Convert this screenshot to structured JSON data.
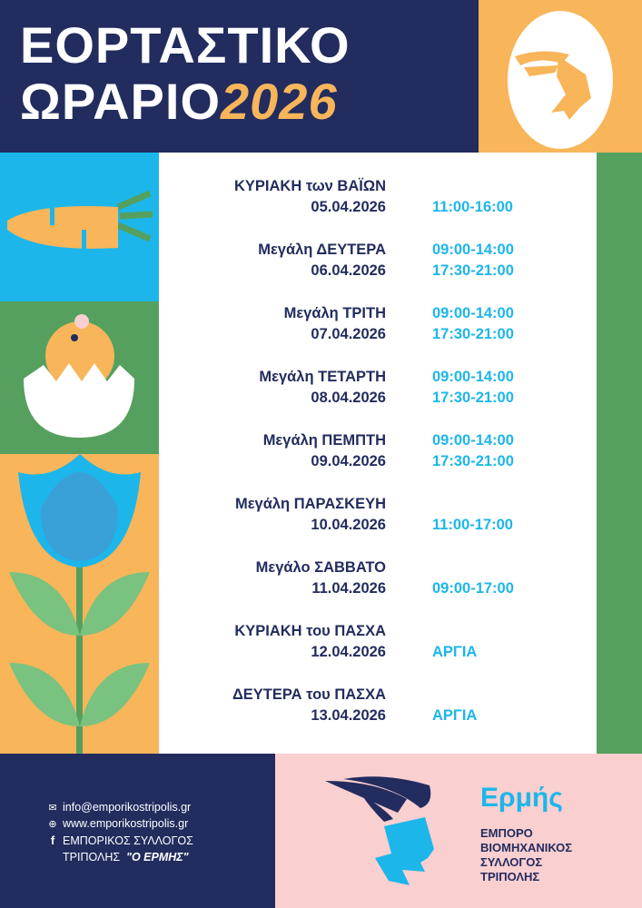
{
  "title": {
    "line1": "ΕΟΡΤΑΣΤΙΚΟ",
    "line2": "ΩΡΑΡΙΟ",
    "year": "2026"
  },
  "colors": {
    "navy": "#222c5e",
    "orange": "#f8b55a",
    "blue": "#1cb6ea",
    "green": "#55a05e",
    "pink": "#f9cfd0"
  },
  "schedule": [
    {
      "day": "ΚΥΡΙΑΚΗ των ΒΑΪΩΝ",
      "date": "05.04.2026",
      "times": [
        "11:00-16:00"
      ]
    },
    {
      "day": "Μεγάλη ΔΕΥΤΕΡΑ",
      "date": "06.04.2026",
      "times": [
        "09:00-14:00",
        "17:30-21:00"
      ]
    },
    {
      "day": "Μεγάλη ΤΡΙΤΗ",
      "date": "07.04.2026",
      "times": [
        "09:00-14:00",
        "17:30-21:00"
      ]
    },
    {
      "day": "Μεγάλη ΤΕΤΑΡΤΗ",
      "date": "08.04.2026",
      "times": [
        "09:00-14:00",
        "17:30-21:00"
      ]
    },
    {
      "day": "Μεγάλη ΠΕΜΠΤΗ",
      "date": "09.04.2026",
      "times": [
        "09:00-14:00",
        "17:30-21:00"
      ]
    },
    {
      "day": "Μεγάλη ΠΑΡΑΣΚΕΥΗ",
      "date": "10.04.2026",
      "times": [
        "11:00-17:00"
      ]
    },
    {
      "day": "Μεγάλο ΣΑΒΒΑΤΟ",
      "date": "11.04.2026",
      "times": [
        "09:00-17:00"
      ]
    },
    {
      "day": "ΚΥΡΙΑΚΗ του ΠΑΣΧΑ",
      "date": "12.04.2026",
      "times": [
        "ΑΡΓΙΑ"
      ]
    },
    {
      "day": "ΔΕΥΤΕΡΑ του ΠΑΣΧΑ",
      "date": "13.04.2026",
      "times": [
        "ΑΡΓΙΑ"
      ]
    }
  ],
  "contact": {
    "email": "info@emporikostripolis.gr",
    "website": "www.emporikostripolis.gr",
    "facebook_line1": "ΕΜΠΟΡΙΚΟΣ ΣΥΛΛΟΓΟΣ",
    "facebook_line2": "ΤΡΙΠΟΛΗΣ",
    "facebook_name": "\"Ο ΕΡΜΗΣ\""
  },
  "logo": {
    "name": "Ερμής",
    "lines": [
      "ΕΜΠΟΡΟ",
      "ΒΙΟΜΗΧΑΝΙΚΟΣ",
      "ΣΥΛΛΟΓΟΣ",
      "ΤΡΙΠΟΛΗΣ"
    ]
  }
}
